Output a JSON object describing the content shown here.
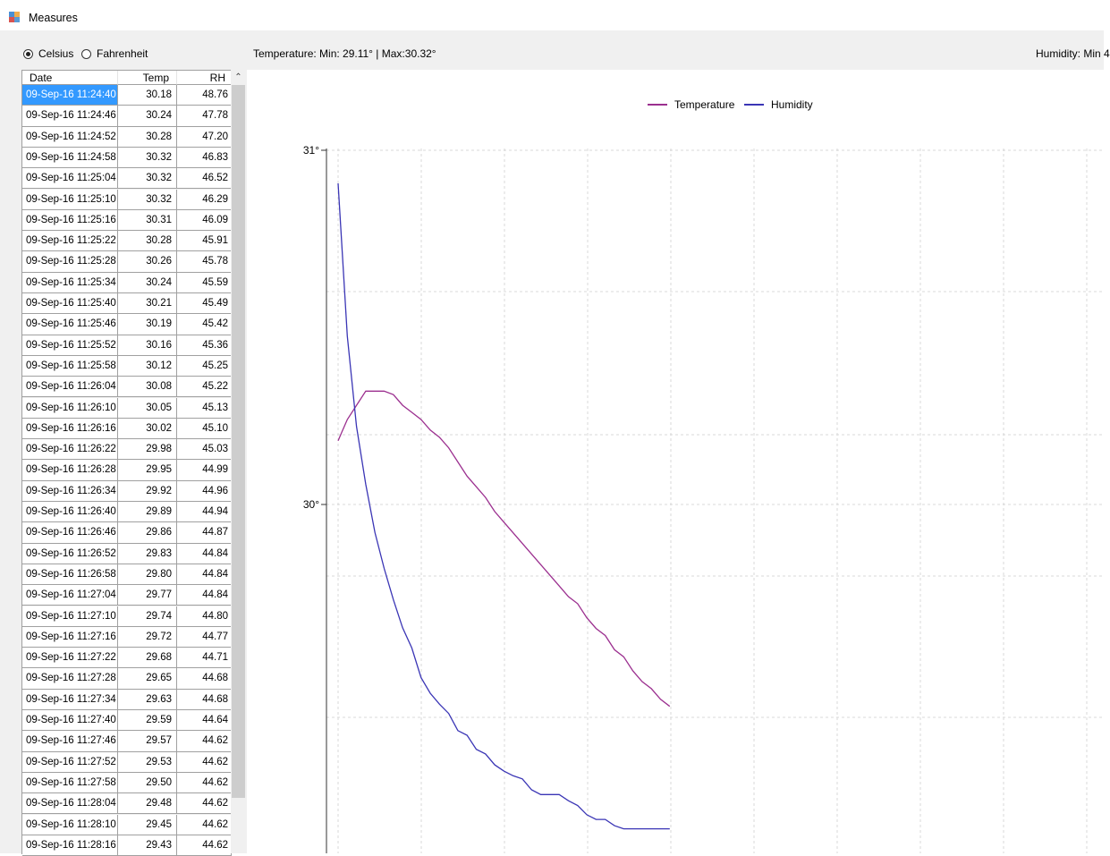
{
  "window": {
    "title": "Measures"
  },
  "units": {
    "celsius_label": "Celsius",
    "fahrenheit_label": "Fahrenheit",
    "selected": "Celsius"
  },
  "summary": {
    "temperature": "Temperature: Min: 29.11° | Max:30.32°",
    "humidity": "Humidity: Min 4"
  },
  "table": {
    "headers": [
      "Date",
      "Temp",
      "RH"
    ],
    "selected_row": 0,
    "rows": [
      [
        "09-Sep-16 11:24:40",
        "30.18",
        "48.76"
      ],
      [
        "09-Sep-16 11:24:46",
        "30.24",
        "47.78"
      ],
      [
        "09-Sep-16 11:24:52",
        "30.28",
        "47.20"
      ],
      [
        "09-Sep-16 11:24:58",
        "30.32",
        "46.83"
      ],
      [
        "09-Sep-16 11:25:04",
        "30.32",
        "46.52"
      ],
      [
        "09-Sep-16 11:25:10",
        "30.32",
        "46.29"
      ],
      [
        "09-Sep-16 11:25:16",
        "30.31",
        "46.09"
      ],
      [
        "09-Sep-16 11:25:22",
        "30.28",
        "45.91"
      ],
      [
        "09-Sep-16 11:25:28",
        "30.26",
        "45.78"
      ],
      [
        "09-Sep-16 11:25:34",
        "30.24",
        "45.59"
      ],
      [
        "09-Sep-16 11:25:40",
        "30.21",
        "45.49"
      ],
      [
        "09-Sep-16 11:25:46",
        "30.19",
        "45.42"
      ],
      [
        "09-Sep-16 11:25:52",
        "30.16",
        "45.36"
      ],
      [
        "09-Sep-16 11:25:58",
        "30.12",
        "45.25"
      ],
      [
        "09-Sep-16 11:26:04",
        "30.08",
        "45.22"
      ],
      [
        "09-Sep-16 11:26:10",
        "30.05",
        "45.13"
      ],
      [
        "09-Sep-16 11:26:16",
        "30.02",
        "45.10"
      ],
      [
        "09-Sep-16 11:26:22",
        "29.98",
        "45.03"
      ],
      [
        "09-Sep-16 11:26:28",
        "29.95",
        "44.99"
      ],
      [
        "09-Sep-16 11:26:34",
        "29.92",
        "44.96"
      ],
      [
        "09-Sep-16 11:26:40",
        "29.89",
        "44.94"
      ],
      [
        "09-Sep-16 11:26:46",
        "29.86",
        "44.87"
      ],
      [
        "09-Sep-16 11:26:52",
        "29.83",
        "44.84"
      ],
      [
        "09-Sep-16 11:26:58",
        "29.80",
        "44.84"
      ],
      [
        "09-Sep-16 11:27:04",
        "29.77",
        "44.84"
      ],
      [
        "09-Sep-16 11:27:10",
        "29.74",
        "44.80"
      ],
      [
        "09-Sep-16 11:27:16",
        "29.72",
        "44.77"
      ],
      [
        "09-Sep-16 11:27:22",
        "29.68",
        "44.71"
      ],
      [
        "09-Sep-16 11:27:28",
        "29.65",
        "44.68"
      ],
      [
        "09-Sep-16 11:27:34",
        "29.63",
        "44.68"
      ],
      [
        "09-Sep-16 11:27:40",
        "29.59",
        "44.64"
      ],
      [
        "09-Sep-16 11:27:46",
        "29.57",
        "44.62"
      ],
      [
        "09-Sep-16 11:27:52",
        "29.53",
        "44.62"
      ],
      [
        "09-Sep-16 11:27:58",
        "29.50",
        "44.62"
      ],
      [
        "09-Sep-16 11:28:04",
        "29.48",
        "44.62"
      ],
      [
        "09-Sep-16 11:28:10",
        "29.45",
        "44.62"
      ],
      [
        "09-Sep-16 11:28:16",
        "29.43",
        "44.62"
      ]
    ]
  },
  "chart_data": {
    "type": "line",
    "title": "",
    "xlabel": "",
    "ylabel": "",
    "grid": true,
    "legend_position": "top-center",
    "y_ticks": [
      "31°",
      "30°"
    ],
    "ylim": [
      29.0,
      31.0
    ],
    "series": [
      {
        "name": "Temperature",
        "color": "#9b2f8f",
        "values": [
          30.18,
          30.24,
          30.28,
          30.32,
          30.32,
          30.32,
          30.31,
          30.28,
          30.26,
          30.24,
          30.21,
          30.19,
          30.16,
          30.12,
          30.08,
          30.05,
          30.02,
          29.98,
          29.95,
          29.92,
          29.89,
          29.86,
          29.83,
          29.8,
          29.77,
          29.74,
          29.72,
          29.68,
          29.65,
          29.63,
          29.59,
          29.57,
          29.53,
          29.5,
          29.48,
          29.45,
          29.43
        ]
      },
      {
        "name": "Humidity",
        "color": "#3a35b5",
        "values": [
          48.76,
          47.78,
          47.2,
          46.83,
          46.52,
          46.29,
          46.09,
          45.91,
          45.78,
          45.59,
          45.49,
          45.42,
          45.36,
          45.25,
          45.22,
          45.13,
          45.1,
          45.03,
          44.99,
          44.96,
          44.94,
          44.87,
          44.84,
          44.84,
          44.84,
          44.8,
          44.77,
          44.71,
          44.68,
          44.68,
          44.64,
          44.62,
          44.62,
          44.62,
          44.62,
          44.62,
          44.62
        ]
      }
    ]
  }
}
